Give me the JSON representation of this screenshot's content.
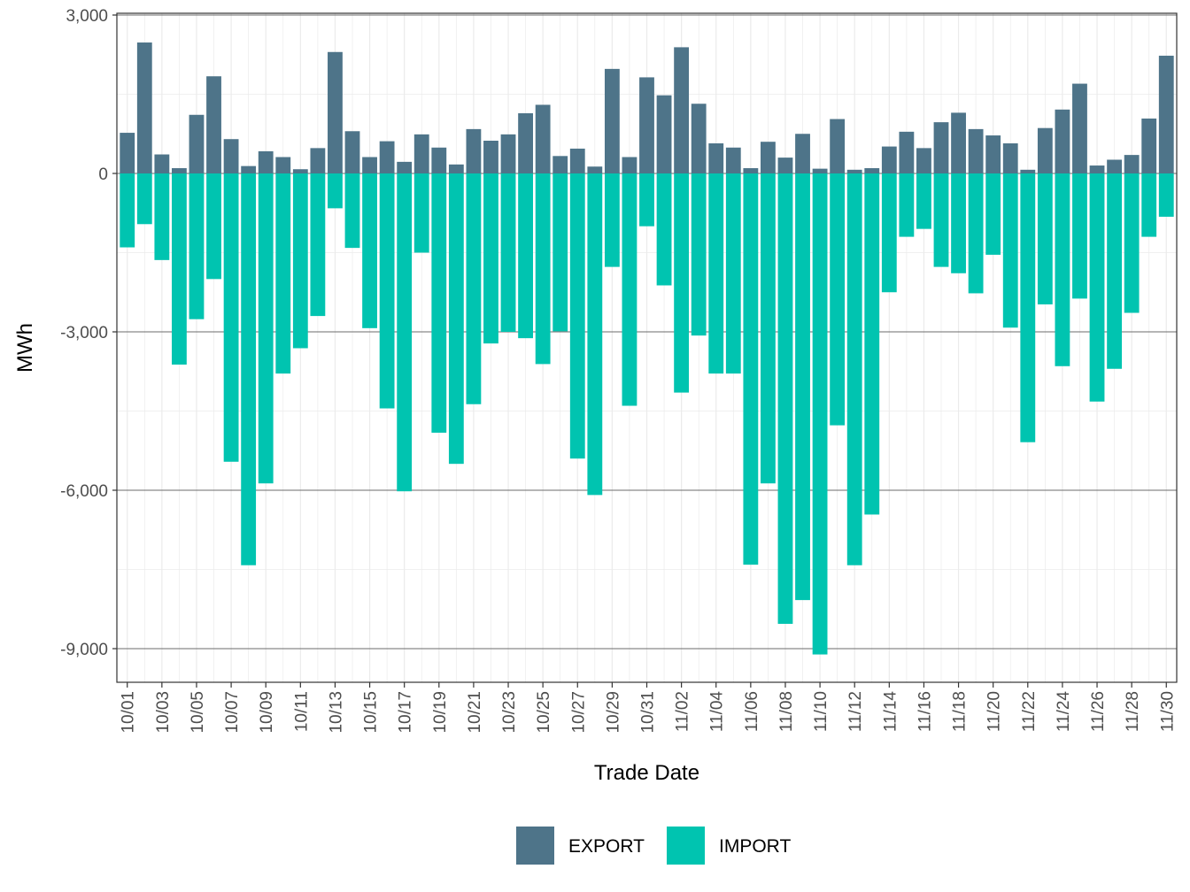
{
  "chart_data": {
    "type": "bar",
    "stacking": "diverging",
    "xlabel": "Trade Date",
    "ylabel": "MWh",
    "ylim": [
      -10100,
      3000
    ],
    "yticks": [
      3000,
      0,
      -3000,
      -6000,
      -9000
    ],
    "ytick_labels": [
      "3,000",
      "0",
      "-3,000",
      "-6,000",
      "-9,000"
    ],
    "grid": true,
    "legend_position": "bottom",
    "categories": [
      "10/01",
      "10/02",
      "10/03",
      "10/04",
      "10/05",
      "10/06",
      "10/07",
      "10/08",
      "10/09",
      "10/10",
      "10/11",
      "10/12",
      "10/13",
      "10/14",
      "10/15",
      "10/16",
      "10/17",
      "10/18",
      "10/19",
      "10/20",
      "10/21",
      "10/22",
      "10/23",
      "10/24",
      "10/25",
      "10/26",
      "10/27",
      "10/28",
      "10/29",
      "10/30",
      "10/31",
      "11/01",
      "11/02",
      "11/03",
      "11/04",
      "11/05",
      "11/06",
      "11/07",
      "11/08",
      "11/09",
      "11/10",
      "11/11",
      "11/12",
      "11/13",
      "11/14",
      "11/15",
      "11/16",
      "11/17",
      "11/18",
      "11/19",
      "11/20",
      "11/21",
      "11/22",
      "11/23",
      "11/24",
      "11/25",
      "11/26",
      "11/27",
      "11/28",
      "11/29",
      "11/30"
    ],
    "xtick_labels": [
      "10/01",
      "10/03",
      "10/05",
      "10/07",
      "10/09",
      "10/11",
      "10/13",
      "10/15",
      "10/17",
      "10/19",
      "10/21",
      "10/23",
      "10/25",
      "10/27",
      "10/29",
      "10/31",
      "11/02",
      "11/04",
      "11/06",
      "11/08",
      "11/10",
      "11/12",
      "11/14",
      "11/16",
      "11/18",
      "11/20",
      "11/22",
      "11/24",
      "11/26",
      "11/28",
      "11/30"
    ],
    "series": [
      {
        "name": "EXPORT",
        "color": "#4e7489",
        "values": [
          770,
          2480,
          360,
          100,
          1110,
          1840,
          650,
          140,
          420,
          310,
          80,
          480,
          2300,
          800,
          310,
          610,
          220,
          740,
          490,
          170,
          840,
          620,
          740,
          1140,
          1300,
          330,
          470,
          130,
          1980,
          310,
          1820,
          1480,
          2390,
          1320,
          570,
          490,
          100,
          600,
          300,
          750,
          90,
          1030,
          70,
          100,
          510,
          790,
          480,
          970,
          1150,
          840,
          720,
          570,
          70,
          860,
          1210,
          1700,
          150,
          260,
          350,
          1040,
          2230
        ]
      },
      {
        "name": "IMPORT",
        "color": "#00c4b0",
        "values": [
          -1400,
          -960,
          -1640,
          -3620,
          -2760,
          -2000,
          -5460,
          -7420,
          -5870,
          -3790,
          -3310,
          -2700,
          -660,
          -1410,
          -2930,
          -4450,
          -6020,
          -1500,
          -4910,
          -5500,
          -4370,
          -3220,
          -3000,
          -3120,
          -3610,
          -2990,
          -5400,
          -6090,
          -1770,
          -4400,
          -1000,
          -2120,
          -4150,
          -3070,
          -3790,
          -3790,
          -7410,
          -5870,
          -8530,
          -8080,
          -9110,
          -4770,
          -7420,
          -6460,
          -2250,
          -1200,
          -1050,
          -1770,
          -1890,
          -2270,
          -1540,
          -2920,
          -5090,
          -2480,
          -3650,
          -2370,
          -4320,
          -3700,
          -2640,
          -1200,
          -820
        ]
      }
    ]
  }
}
